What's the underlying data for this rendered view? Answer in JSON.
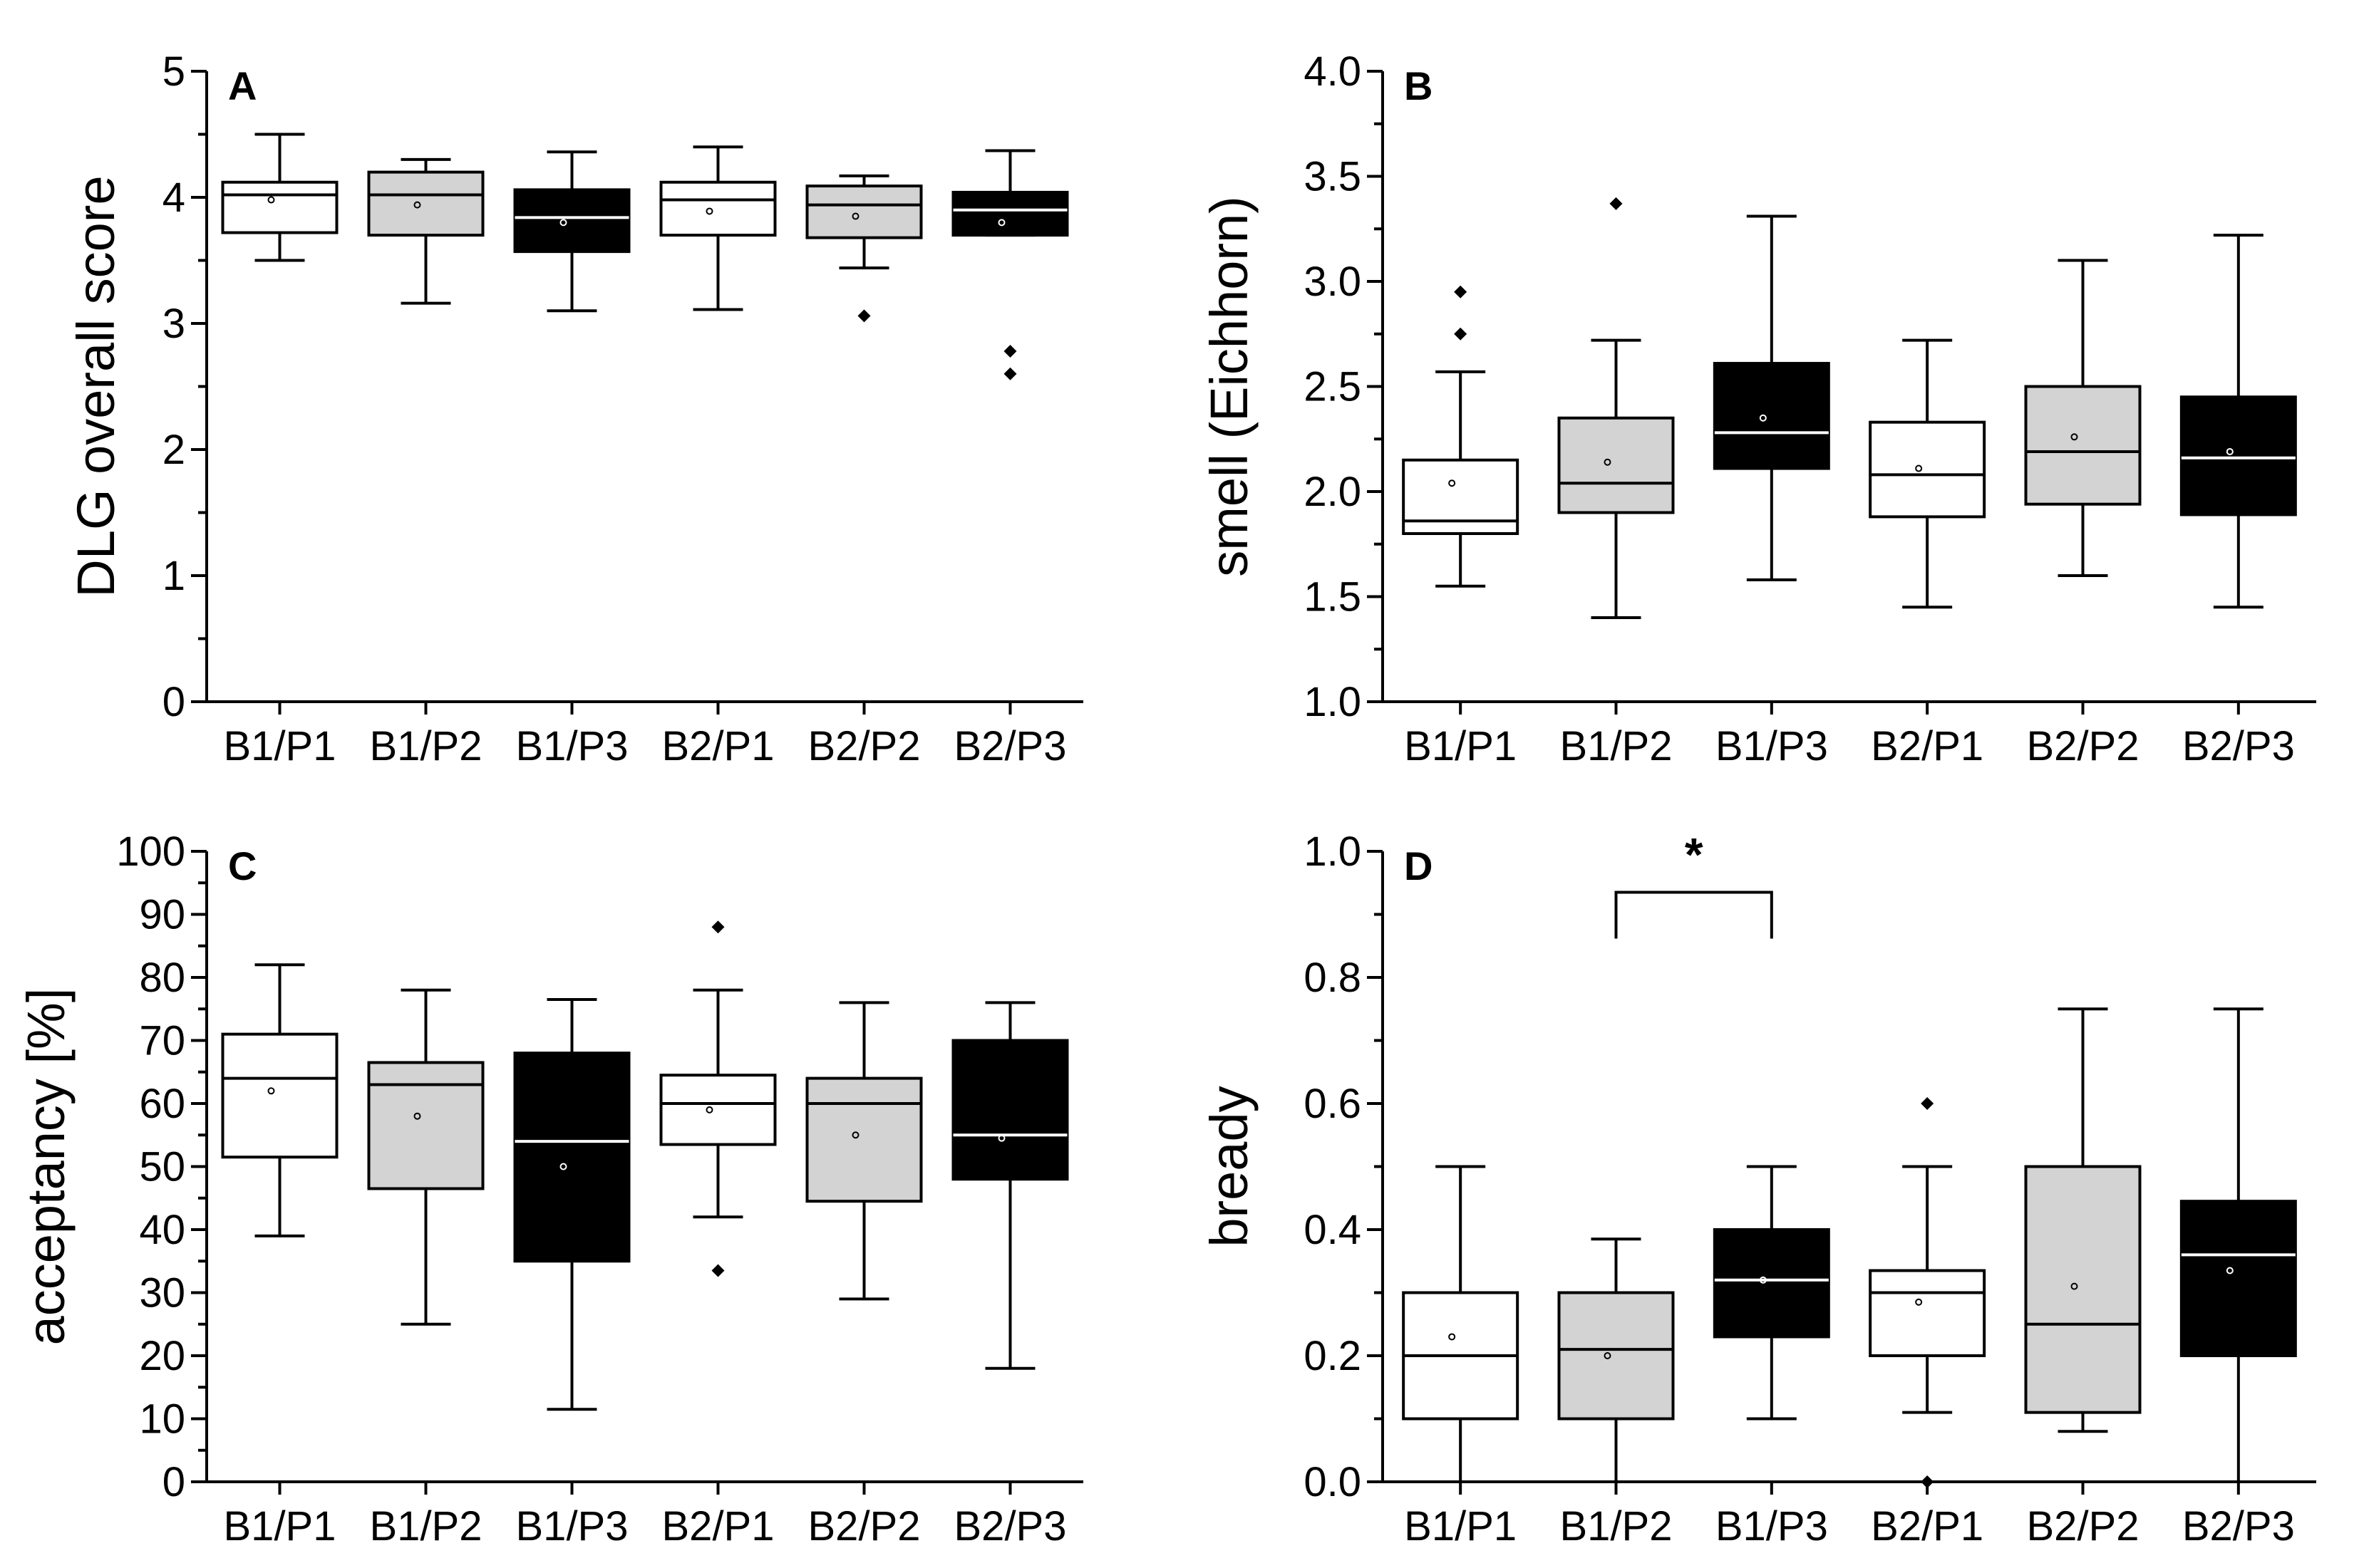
{
  "colors": {
    "white": "#ffffff",
    "gray": "#d3d3d3",
    "black": "#000000"
  },
  "chart_data": [
    {
      "type": "box",
      "panel": "A",
      "ylabel": "DLG overall score",
      "ylim": [
        0,
        5
      ],
      "yticks": [
        0,
        1,
        2,
        3,
        4,
        5
      ],
      "ytick_labels": [
        "0",
        "1",
        "2",
        "3",
        "4",
        "5"
      ],
      "categories": [
        "B1/P1",
        "B1/P2",
        "B1/P3",
        "B2/P1",
        "B2/P2",
        "B2/P3"
      ],
      "fills": [
        "white",
        "gray",
        "black",
        "white",
        "gray",
        "black"
      ],
      "boxes": [
        {
          "min": 3.5,
          "q1": 3.72,
          "median": 4.02,
          "q3": 4.12,
          "max": 4.5,
          "mean": 3.98,
          "outliers": []
        },
        {
          "min": 3.16,
          "q1": 3.7,
          "median": 4.02,
          "q3": 4.2,
          "max": 4.3,
          "mean": 3.94,
          "outliers": []
        },
        {
          "min": 3.1,
          "q1": 3.57,
          "median": 3.84,
          "q3": 4.06,
          "max": 4.36,
          "mean": 3.8,
          "outliers": []
        },
        {
          "min": 3.11,
          "q1": 3.7,
          "median": 3.98,
          "q3": 4.12,
          "max": 4.4,
          "mean": 3.89,
          "outliers": []
        },
        {
          "min": 3.44,
          "q1": 3.68,
          "median": 3.94,
          "q3": 4.09,
          "max": 4.17,
          "mean": 3.85,
          "outliers": [
            3.06
          ]
        },
        {
          "min": 3.7,
          "q1": 3.7,
          "median": 3.9,
          "q3": 4.04,
          "max": 4.37,
          "mean": 3.8,
          "outliers": [
            2.78,
            2.6
          ]
        }
      ]
    },
    {
      "type": "box",
      "panel": "B",
      "ylabel": "smell (Eichhorn)",
      "ylim": [
        1.0,
        4.0
      ],
      "yticks": [
        1.0,
        1.5,
        2.0,
        2.5,
        3.0,
        3.5,
        4.0
      ],
      "ytick_labels": [
        "1.0",
        "1.5",
        "2.0",
        "2.5",
        "3.0",
        "3.5",
        "4.0"
      ],
      "categories": [
        "B1/P1",
        "B1/P2",
        "B1/P3",
        "B2/P1",
        "B2/P2",
        "B2/P3"
      ],
      "fills": [
        "white",
        "gray",
        "black",
        "white",
        "gray",
        "black"
      ],
      "boxes": [
        {
          "min": 1.55,
          "q1": 1.8,
          "median": 1.86,
          "q3": 2.15,
          "max": 2.57,
          "mean": 2.04,
          "outliers": [
            2.95,
            2.75
          ]
        },
        {
          "min": 1.4,
          "q1": 1.9,
          "median": 2.04,
          "q3": 2.35,
          "max": 2.72,
          "mean": 2.14,
          "outliers": [
            3.37
          ]
        },
        {
          "min": 1.58,
          "q1": 2.11,
          "median": 2.28,
          "q3": 2.61,
          "max": 3.31,
          "mean": 2.35,
          "outliers": []
        },
        {
          "min": 1.45,
          "q1": 1.88,
          "median": 2.08,
          "q3": 2.33,
          "max": 2.72,
          "mean": 2.11,
          "outliers": []
        },
        {
          "min": 1.6,
          "q1": 1.94,
          "median": 2.19,
          "q3": 2.5,
          "max": 3.1,
          "mean": 2.26,
          "outliers": []
        },
        {
          "min": 1.45,
          "q1": 1.89,
          "median": 2.16,
          "q3": 2.45,
          "max": 3.22,
          "mean": 2.19,
          "outliers": []
        }
      ]
    },
    {
      "type": "box",
      "panel": "C",
      "ylabel": "acceptancy [%]",
      "ylim": [
        0,
        100
      ],
      "yticks": [
        0,
        10,
        20,
        30,
        40,
        50,
        60,
        70,
        80,
        90,
        100
      ],
      "ytick_labels": [
        "0",
        "10",
        "20",
        "30",
        "40",
        "50",
        "60",
        "70",
        "80",
        "90",
        "100"
      ],
      "categories": [
        "B1/P1",
        "B1/P2",
        "B1/P3",
        "B2/P1",
        "B2/P2",
        "B2/P3"
      ],
      "fills": [
        "white",
        "gray",
        "black",
        "white",
        "gray",
        "black"
      ],
      "boxes": [
        {
          "min": 39,
          "q1": 51.5,
          "median": 64,
          "q3": 71,
          "max": 82,
          "mean": 62,
          "outliers": []
        },
        {
          "min": 25,
          "q1": 46.5,
          "median": 63,
          "q3": 66.5,
          "max": 78,
          "mean": 58,
          "outliers": []
        },
        {
          "min": 11.5,
          "q1": 35,
          "median": 54,
          "q3": 68,
          "max": 76.5,
          "mean": 50,
          "outliers": []
        },
        {
          "min": 42,
          "q1": 53.5,
          "median": 60,
          "q3": 64.5,
          "max": 78,
          "mean": 59,
          "outliers": [
            88,
            33.5
          ]
        },
        {
          "min": 29,
          "q1": 44.5,
          "median": 60,
          "q3": 64,
          "max": 76,
          "mean": 55,
          "outliers": []
        },
        {
          "min": 18,
          "q1": 48,
          "median": 55,
          "q3": 70,
          "max": 76,
          "mean": 54.5,
          "outliers": []
        }
      ]
    },
    {
      "type": "box",
      "panel": "D",
      "ylabel": "bready",
      "ylim": [
        0.0,
        1.0
      ],
      "yticks": [
        0.0,
        0.2,
        0.4,
        0.6,
        0.8,
        1.0
      ],
      "ytick_labels": [
        "0.0",
        "0.2",
        "0.4",
        "0.6",
        "0.8",
        "1.0"
      ],
      "categories": [
        "B1/P1",
        "B1/P2",
        "B1/P3",
        "B2/P1",
        "B2/P2",
        "B2/P3"
      ],
      "fills": [
        "white",
        "gray",
        "black",
        "white",
        "gray",
        "black"
      ],
      "boxes": [
        {
          "min": 0.0,
          "q1": 0.1,
          "median": 0.2,
          "q3": 0.3,
          "max": 0.5,
          "mean": 0.23,
          "outliers": []
        },
        {
          "min": 0.0,
          "q1": 0.1,
          "median": 0.21,
          "q3": 0.3,
          "max": 0.385,
          "mean": 0.2,
          "outliers": []
        },
        {
          "min": 0.1,
          "q1": 0.23,
          "median": 0.32,
          "q3": 0.4,
          "max": 0.5,
          "mean": 0.32,
          "outliers": []
        },
        {
          "min": 0.11,
          "q1": 0.2,
          "median": 0.3,
          "q3": 0.335,
          "max": 0.5,
          "mean": 0.285,
          "outliers": [
            0.6,
            0.0
          ]
        },
        {
          "min": 0.08,
          "q1": 0.11,
          "median": 0.25,
          "q3": 0.5,
          "max": 0.75,
          "mean": 0.31,
          "outliers": []
        },
        {
          "min": 0.0,
          "q1": 0.2,
          "median": 0.36,
          "q3": 0.445,
          "max": 0.75,
          "mean": 0.335,
          "outliers": []
        }
      ],
      "significance": [
        {
          "from": 1,
          "to": 2,
          "label": "*",
          "y": 0.935
        }
      ]
    }
  ]
}
